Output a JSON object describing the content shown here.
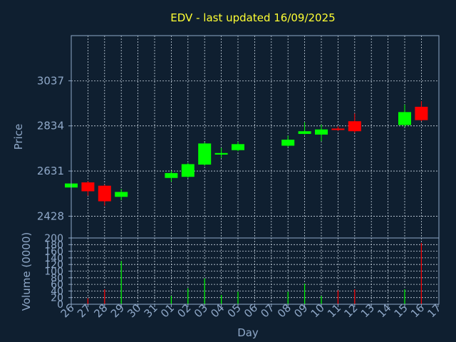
{
  "chart_data": [
    {
      "type": "candlestick",
      "title": "EDV - last updated 16/09/2025",
      "ylabel": "Price",
      "y_ticks": [
        2428,
        2631,
        2834,
        3037
      ],
      "ylim": [
        2330,
        3240
      ],
      "grid": true,
      "x_tick_labels": [
        "26",
        "27",
        "28",
        "29",
        "30",
        "31",
        "01",
        "02",
        "03",
        "04",
        "05",
        "06",
        "07",
        "08",
        "09",
        "10",
        "11",
        "12",
        "13",
        "14",
        "15",
        "16",
        "17"
      ],
      "candles": [
        {
          "x": 0,
          "open": 2557,
          "close": 2575,
          "high": 2580,
          "low": 2552
        },
        {
          "x": 1,
          "open": 2580,
          "close": 2540,
          "high": 2585,
          "low": 2520
        },
        {
          "x": 2,
          "open": 2565,
          "close": 2495,
          "high": 2570,
          "low": 2475
        },
        {
          "x": 3,
          "open": 2515,
          "close": 2537,
          "high": 2550,
          "low": 2500
        },
        {
          "x": 6,
          "open": 2600,
          "close": 2622,
          "high": 2632,
          "low": 2583
        },
        {
          "x": 7,
          "open": 2605,
          "close": 2662,
          "high": 2667,
          "low": 2600
        },
        {
          "x": 8,
          "open": 2660,
          "close": 2755,
          "high": 2760,
          "low": 2655
        },
        {
          "x": 9,
          "open": 2705,
          "close": 2712,
          "high": 2735,
          "low": 2690
        },
        {
          "x": 10,
          "open": 2725,
          "close": 2752,
          "high": 2762,
          "low": 2720
        },
        {
          "x": 13,
          "open": 2745,
          "close": 2772,
          "high": 2790,
          "low": 2740
        },
        {
          "x": 14,
          "open": 2798,
          "close": 2810,
          "high": 2850,
          "low": 2795
        },
        {
          "x": 15,
          "open": 2795,
          "close": 2818,
          "high": 2840,
          "low": 2765
        },
        {
          "x": 16,
          "open": 2822,
          "close": 2818,
          "high": 2832,
          "low": 2812
        },
        {
          "x": 17,
          "open": 2855,
          "close": 2810,
          "high": 2890,
          "low": 2803
        },
        {
          "x": 20,
          "open": 2838,
          "close": 2896,
          "high": 2930,
          "low": 2830
        },
        {
          "x": 21,
          "open": 2920,
          "close": 2860,
          "high": 2945,
          "low": 2855
        }
      ]
    },
    {
      "type": "bar",
      "xlabel": "Day",
      "ylabel": "Volume (0000)",
      "y_ticks": [
        0,
        20,
        40,
        60,
        80,
        100,
        120,
        140,
        160,
        180,
        200
      ],
      "ylim": [
        0,
        200
      ],
      "grid": true,
      "x_tick_labels": [
        "26",
        "27",
        "28",
        "29",
        "30",
        "31",
        "01",
        "02",
        "03",
        "04",
        "05",
        "06",
        "07",
        "08",
        "09",
        "10",
        "11",
        "12",
        "13",
        "14",
        "15",
        "16",
        "17"
      ],
      "bars": [
        {
          "x": 1,
          "value": 18,
          "direction": "down"
        },
        {
          "x": 2,
          "value": 45,
          "direction": "down"
        },
        {
          "x": 3,
          "value": 130,
          "direction": "up"
        },
        {
          "x": 6,
          "value": 25,
          "direction": "up"
        },
        {
          "x": 7,
          "value": 48,
          "direction": "up"
        },
        {
          "x": 8,
          "value": 78,
          "direction": "up"
        },
        {
          "x": 9,
          "value": 28,
          "direction": "up"
        },
        {
          "x": 10,
          "value": 38,
          "direction": "up"
        },
        {
          "x": 13,
          "value": 38,
          "direction": "up"
        },
        {
          "x": 14,
          "value": 62,
          "direction": "up"
        },
        {
          "x": 15,
          "value": 25,
          "direction": "up"
        },
        {
          "x": 16,
          "value": 42,
          "direction": "down"
        },
        {
          "x": 17,
          "value": 45,
          "direction": "down"
        },
        {
          "x": 20,
          "value": 45,
          "direction": "up"
        },
        {
          "x": 21,
          "value": 185,
          "direction": "down"
        }
      ]
    }
  ],
  "colors": {
    "background": "#0f1f30",
    "axis": "#8fa8c8",
    "grid": "#c8d4e0",
    "title": "#ffff33",
    "up": "#00ff00",
    "down": "#ff0000"
  }
}
